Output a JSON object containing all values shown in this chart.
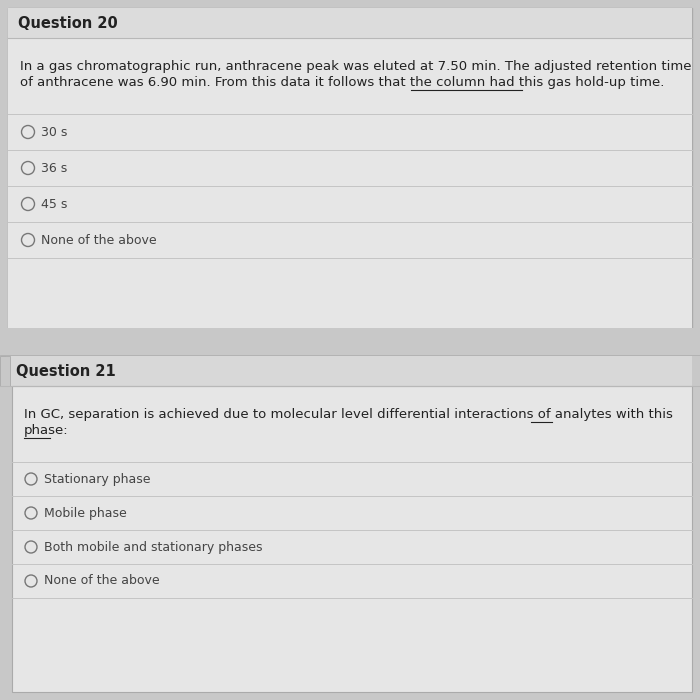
{
  "bg_color": "#d0d0d0",
  "outer_bg": "#c8c8c8",
  "card_bg": "#e2e2e2",
  "header_bg": "#dcdcdc",
  "inner_bg": "#e6e6e6",
  "border_color": "#aaaaaa",
  "divider_color": "#c0c0c0",
  "text_color": "#222222",
  "option_text_color": "#444444",
  "circle_color": "#777777",
  "q20_title": "Question 20",
  "q20_line1": "In a gas chromatographic run, anthracene peak was eluted at 7.50 min. The adjusted retention time",
  "q20_line2_pre": "of anthracene was 6.90 min. From this data it follows that the column had ",
  "q20_line2_ul": "this gas hold-up time",
  "q20_line2_post": ".",
  "q20_options": [
    "30 s",
    "36 s",
    "45 s",
    "None of the above"
  ],
  "q21_title": "Question 21",
  "q21_line1_pre": "In GC, separation is achieved due to molecular level differential interactions of analytes with ",
  "q21_line1_ul": "this",
  "q21_line2_ul": "phase",
  "q21_line2_post": ":",
  "q21_options": [
    "Stationary phase",
    "Mobile phase",
    "Both mobile and stationary phases",
    "None of the above"
  ],
  "title_fontsize": 10.5,
  "body_fontsize": 9.5,
  "option_fontsize": 9.0,
  "fig_w": 7.0,
  "fig_h": 7.0,
  "dpi": 100
}
